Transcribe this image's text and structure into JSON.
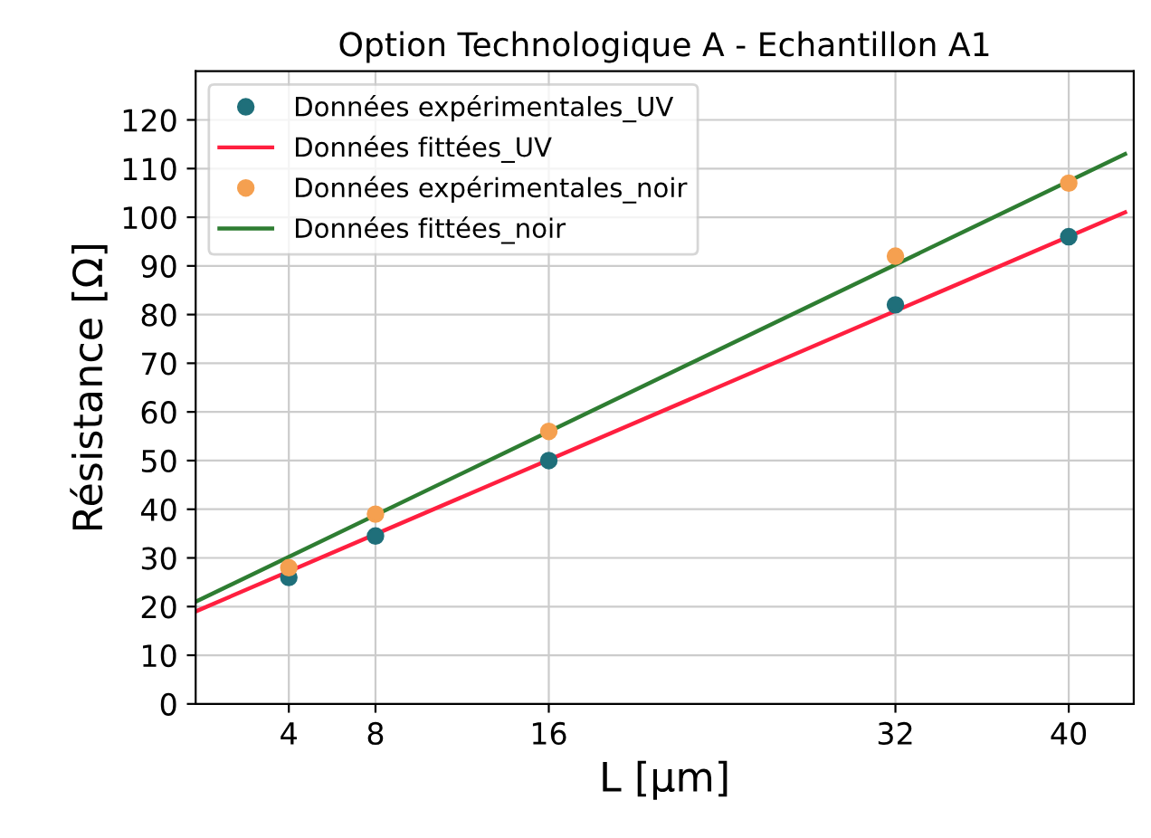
{
  "chart_data": {
    "type": "scatter",
    "title": "Option Technologique A - Echantillon A1",
    "xlabel": "L [μm]",
    "ylabel": "Résistance [Ω]",
    "xlim": [
      -0.3,
      43
    ],
    "ylim": [
      0,
      130
    ],
    "xticks": [
      4,
      8,
      16,
      32,
      40
    ],
    "yticks": [
      0,
      10,
      20,
      30,
      40,
      50,
      60,
      70,
      80,
      90,
      100,
      110,
      120
    ],
    "grid": true,
    "legend": "top left",
    "series": [
      {
        "name": "Données expérimentales_UV",
        "marker": "circle",
        "color": "#1f6f7a",
        "x": [
          4,
          8,
          16,
          32,
          40
        ],
        "values": [
          26,
          34.5,
          50,
          82,
          96
        ]
      },
      {
        "name": "Données fittées_UV",
        "type": "line",
        "color": "#ff1f3f",
        "x": [
          -0.3,
          42.6
        ],
        "values": [
          19,
          101
        ]
      },
      {
        "name": "Données expérimentales_noir",
        "marker": "circle",
        "color": "#f5a050",
        "x": [
          4,
          8,
          16,
          32,
          40
        ],
        "values": [
          28,
          39,
          56,
          92,
          107
        ]
      },
      {
        "name": "Données fittées_noir",
        "type": "line",
        "color": "#2e7d32",
        "x": [
          -0.3,
          42.6
        ],
        "values": [
          21,
          113
        ]
      }
    ]
  }
}
